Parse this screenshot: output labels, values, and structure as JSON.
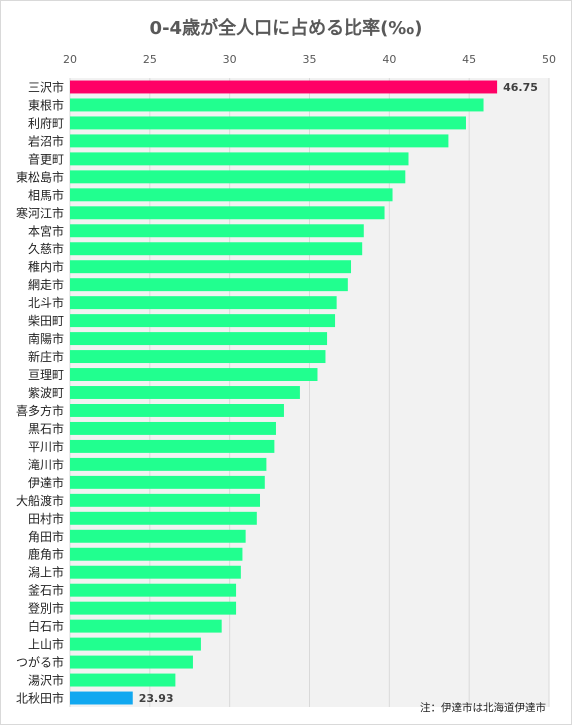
{
  "chart_data": {
    "type": "bar",
    "orientation": "horizontal",
    "title": "0-4歳が全人口に占める比率(‰)",
    "note": "注：伊達市は北海道伊達市",
    "xlim": [
      20,
      50
    ],
    "xticks": [
      "20",
      "25",
      "30",
      "35",
      "40",
      "45",
      "50"
    ],
    "grid": true,
    "categories": [
      "三沢市",
      "東根市",
      "利府町",
      "岩沼市",
      "音更町",
      "東松島市",
      "相馬市",
      "寒河江市",
      "本宮市",
      "久慈市",
      "稚内市",
      "網走市",
      "北斗市",
      "柴田町",
      "南陽市",
      "新庄市",
      "亘理町",
      "紫波町",
      "喜多方市",
      "黒石市",
      "平川市",
      "滝川市",
      "伊達市",
      "大船渡市",
      "田村市",
      "角田市",
      "鹿角市",
      "潟上市",
      "釜石市",
      "登別市",
      "白石市",
      "上山市",
      "つがる市",
      "湯沢市",
      "北秋田市"
    ],
    "values": [
      46.75,
      45.9,
      44.8,
      43.7,
      41.2,
      41.0,
      40.2,
      39.7,
      38.4,
      38.3,
      37.6,
      37.4,
      36.7,
      36.6,
      36.1,
      36.0,
      35.5,
      34.4,
      33.4,
      32.9,
      32.8,
      32.3,
      32.2,
      31.9,
      31.7,
      31.0,
      30.8,
      30.7,
      30.4,
      30.4,
      29.5,
      28.2,
      27.7,
      26.6,
      23.93
    ],
    "data_labels": {
      "0": "46.75",
      "34": "23.93"
    },
    "colors": {
      "default": "#21ff8f",
      "highlight_max": "#ff0066",
      "highlight_min": "#11a8f0",
      "plot_bg": "#f2f2f2",
      "grid": "#d9d9d9"
    }
  }
}
